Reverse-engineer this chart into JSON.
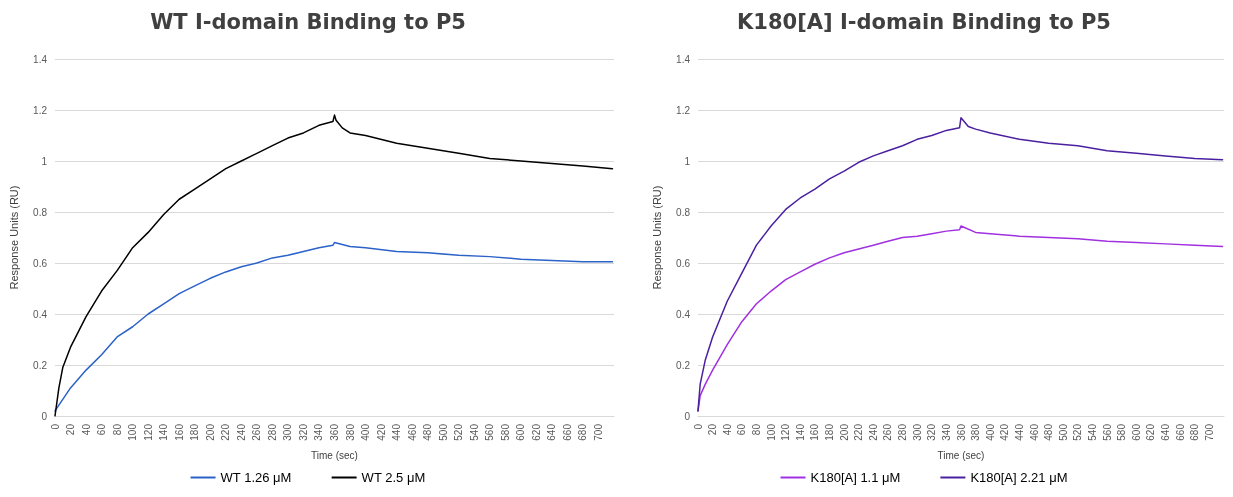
{
  "chart_data": [
    {
      "type": "line",
      "title": "WT I-domain Binding to P5",
      "xlabel": "Time (sec)",
      "ylabel": "Response Units (RU)",
      "xlim": [
        0,
        720
      ],
      "xticks": [
        0,
        20,
        40,
        60,
        80,
        100,
        120,
        140,
        160,
        180,
        200,
        220,
        240,
        260,
        280,
        300,
        320,
        340,
        360,
        380,
        400,
        420,
        440,
        460,
        480,
        500,
        520,
        540,
        560,
        580,
        600,
        620,
        640,
        660,
        680,
        700
      ],
      "ylim": [
        0,
        1.4
      ],
      "yticks": [
        0,
        0.2,
        0.4,
        0.6,
        0.8,
        1,
        1.2,
        1.4
      ],
      "grid": "y",
      "legend": "bottom",
      "marker": "none",
      "line_style": "solid",
      "series": [
        {
          "name": "WT 1.26 μM",
          "color": "#2b62c8",
          "x": [
            0,
            20,
            40,
            60,
            80,
            100,
            120,
            140,
            160,
            180,
            200,
            220,
            240,
            260,
            280,
            300,
            320,
            340,
            358,
            360,
            380,
            400,
            440,
            480,
            520,
            560,
            600,
            640,
            680,
            718
          ],
          "values": [
            0.02,
            0.11,
            0.18,
            0.24,
            0.31,
            0.35,
            0.4,
            0.44,
            0.48,
            0.51,
            0.54,
            0.565,
            0.585,
            0.6,
            0.62,
            0.63,
            0.645,
            0.66,
            0.67,
            0.68,
            0.665,
            0.66,
            0.645,
            0.64,
            0.63,
            0.625,
            0.615,
            0.61,
            0.605,
            0.605
          ]
        },
        {
          "name": "WT 2.5 μM",
          "color": "#000000",
          "x": [
            0,
            5,
            10,
            20,
            40,
            60,
            80,
            100,
            120,
            140,
            160,
            180,
            200,
            220,
            240,
            260,
            280,
            300,
            320,
            340,
            358,
            360,
            362,
            370,
            380,
            400,
            440,
            480,
            520,
            560,
            600,
            640,
            680,
            718
          ],
          "values": [
            0,
            0.11,
            0.19,
            0.27,
            0.39,
            0.49,
            0.57,
            0.66,
            0.72,
            0.79,
            0.85,
            0.89,
            0.93,
            0.97,
            1.0,
            1.03,
            1.06,
            1.09,
            1.11,
            1.14,
            1.155,
            1.18,
            1.16,
            1.13,
            1.11,
            1.1,
            1.07,
            1.05,
            1.03,
            1.01,
            1.0,
            0.99,
            0.98,
            0.97
          ]
        }
      ]
    },
    {
      "type": "line",
      "title": "K180[A] I-domain Binding to P5",
      "xlabel": "Time (sec)",
      "ylabel": "Response Units (RU)",
      "xlim": [
        0,
        720
      ],
      "xticks": [
        0,
        20,
        40,
        60,
        80,
        100,
        120,
        140,
        160,
        180,
        200,
        220,
        240,
        260,
        280,
        300,
        320,
        340,
        360,
        380,
        400,
        420,
        440,
        460,
        480,
        500,
        520,
        540,
        560,
        580,
        600,
        620,
        640,
        660,
        680,
        700
      ],
      "ylim": [
        0,
        1.4
      ],
      "yticks": [
        0,
        0.2,
        0.4,
        0.6,
        0.8,
        1,
        1.2,
        1.4
      ],
      "grid": "y",
      "legend": "bottom",
      "marker": "none",
      "line_style": "solid",
      "series": [
        {
          "name": "K180[A] 1.1 μM",
          "color": "#a030e0",
          "x": [
            0,
            3,
            10,
            20,
            40,
            60,
            80,
            100,
            120,
            140,
            160,
            180,
            200,
            220,
            240,
            260,
            280,
            300,
            320,
            340,
            358,
            360,
            380,
            400,
            440,
            480,
            520,
            560,
            600,
            640,
            680,
            718
          ],
          "values": [
            0.02,
            0.08,
            0.125,
            0.18,
            0.28,
            0.37,
            0.44,
            0.49,
            0.535,
            0.565,
            0.595,
            0.62,
            0.64,
            0.655,
            0.67,
            0.685,
            0.7,
            0.705,
            0.715,
            0.725,
            0.73,
            0.745,
            0.72,
            0.715,
            0.705,
            0.7,
            0.695,
            0.685,
            0.68,
            0.675,
            0.67,
            0.665
          ]
        },
        {
          "name": "K180[A] 2.21 μM",
          "color": "#4a20a0",
          "x": [
            0,
            3,
            10,
            20,
            40,
            60,
            80,
            100,
            120,
            140,
            160,
            180,
            200,
            220,
            240,
            260,
            280,
            300,
            320,
            340,
            358,
            360,
            370,
            380,
            400,
            440,
            480,
            520,
            560,
            600,
            640,
            680,
            718
          ],
          "values": [
            0.02,
            0.125,
            0.22,
            0.31,
            0.45,
            0.56,
            0.67,
            0.745,
            0.81,
            0.855,
            0.89,
            0.93,
            0.96,
            0.995,
            1.02,
            1.04,
            1.06,
            1.085,
            1.1,
            1.12,
            1.13,
            1.17,
            1.135,
            1.125,
            1.11,
            1.085,
            1.07,
            1.06,
            1.04,
            1.03,
            1.02,
            1.01,
            1.005
          ]
        }
      ]
    }
  ]
}
